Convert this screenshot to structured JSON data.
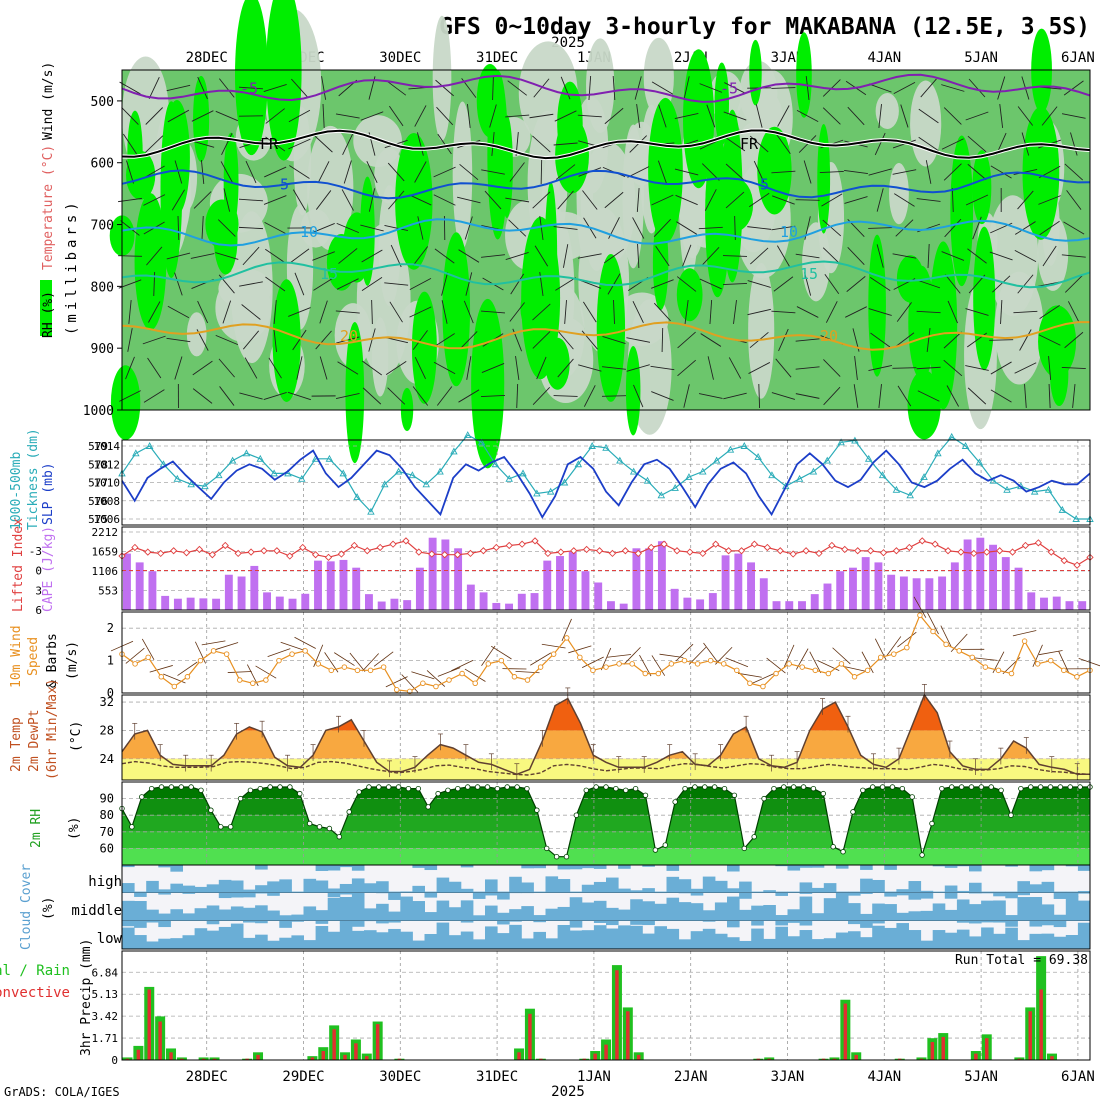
{
  "title": "GFS 0~10day 3-hourly for MAKABANA (12.5E, 3.5S)",
  "year_top": "2025",
  "year_bottom": "2025",
  "footer": "GrADS: COLA/IGES",
  "date_labels": [
    "28DEC",
    "29DEC",
    "30DEC",
    "31DEC",
    "1JAN",
    "2JAN",
    "3JAN",
    "4JAN",
    "5JAN",
    "6JAN"
  ],
  "panel_labels": {
    "upper": {
      "rh": "RH (%)",
      "temp": "Temperature (°C)",
      "wind": "Wind (m/s)",
      "units": "(millibars)"
    },
    "thick": {
      "a": "1000-500mb",
      "b": "Tickness (dm)",
      "slp": "SLP (mb)"
    },
    "li": {
      "li": "Lifted Index",
      "cape": "CAPE (J/kg)"
    },
    "wind10": {
      "a": "10m Wind",
      "b": "Speed",
      "c": "& Barbs",
      "units": "(m/s)"
    },
    "temp2m": {
      "a": "2m Temp",
      "b": "2m DewPt",
      "c": "(6hr Min/Max)",
      "units": "(°C)"
    },
    "rh2m": {
      "a": "2m RH",
      "units": "(%)"
    },
    "cloud": {
      "a": "Cloud Cover",
      "units": "(%)",
      "high": "high",
      "middle": "middle",
      "low": "low"
    },
    "precip": {
      "a": "Total / Rain",
      "b": "Convective",
      "c": "3hr Precip (mm)",
      "run_total": "Run Total = 69.38"
    }
  },
  "colors": {
    "rh_bright": "#00ee00",
    "rh_mid": "#6cc66c",
    "rh_light": "#c8d8c8",
    "slp": "#1c3ec8",
    "thickness": "#2aacb8",
    "li": "#e04040",
    "cape": "#c070f0",
    "wind10": "#e89020",
    "temp_hot": "#f06010",
    "temp_warm": "#f8a840",
    "temp_base": "#f8f880",
    "rh_dark": "#008000",
    "cloud": "#6aaed6",
    "precip_total": "#20c020",
    "precip_conv": "#e03030"
  },
  "chart_data": [
    {
      "type": "heatmap",
      "title": "Upper air RH, Temperature and Wind",
      "ylabel": "millibars",
      "y_ticks": [
        500,
        600,
        700,
        800,
        900,
        1000
      ],
      "ylim": [
        1000,
        450
      ],
      "isotherms": [
        {
          "label": "-5",
          "level": 480,
          "color": "#8020b0"
        },
        {
          "label": "FR",
          "level": 570,
          "color": "#000000"
        },
        {
          "label": "5",
          "level": 635,
          "color": "#1050d0"
        },
        {
          "label": "10",
          "level": 712,
          "color": "#20a0e0"
        },
        {
          "label": "15",
          "level": 780,
          "color": "#20c0a0"
        },
        {
          "label": "20",
          "level": 880,
          "color": "#e0a020"
        }
      ]
    },
    {
      "type": "line",
      "title": "1000-500mb Thickness (dm) and SLP (mb)",
      "y_ticks_thickness": [
        575,
        576,
        577,
        578,
        579
      ],
      "y_ticks_slp": [
        1006,
        1008,
        1010,
        1012,
        1014
      ],
      "series": [
        {
          "name": "SLP (mb)",
          "values": [
            1010.2,
            1008,
            1010.5,
            1011.5,
            1012.3,
            1010.8,
            1009.5,
            1008.2,
            1010,
            1011.3,
            1012,
            1011.5,
            1010.3,
            1011.2,
            1012.5,
            1013.5,
            1011,
            1009.5,
            1010.5,
            1012,
            1013.5,
            1013,
            1011.5,
            1009.5,
            1008,
            1006.5,
            1010.5,
            1012,
            1011.3,
            1012.2,
            1012.8,
            1011,
            1008.8,
            1006.2,
            1008.5,
            1012,
            1012.8,
            1011.5,
            1009,
            1007.5,
            1010,
            1012,
            1012.5,
            1011.5,
            1009.5,
            1007.3,
            1009.8,
            1011.5,
            1012.2,
            1011,
            1008.5,
            1006.5,
            1009.2,
            1012,
            1013.2,
            1012,
            1010.2,
            1009.5,
            1010.3,
            1012.2,
            1013.5,
            1012,
            1010,
            1009.5,
            1010.2,
            1011.5,
            1012.5,
            1011,
            1010.2,
            1010.8,
            1010.2,
            1009,
            1009.5,
            1010.2,
            1009.8,
            1009.8,
            1011
          ]
        },
        {
          "name": "Thickness (dm)",
          "values": [
            577.5,
            578.6,
            579.0,
            578.0,
            577.2,
            576.9,
            576.8,
            577.4,
            578.2,
            578.6,
            578.3,
            577.5,
            577.5,
            577.2,
            578.3,
            578.3,
            577.5,
            576.2,
            575.4,
            576.9,
            577.6,
            577.4,
            576.9,
            577.6,
            578.7,
            579.6,
            579.2,
            578.0,
            577.2,
            577.5,
            576.4,
            576.5,
            577.0,
            578.0,
            579.0,
            578.9,
            578.2,
            577.6,
            577.1,
            576.3,
            576.7,
            577.3,
            577.6,
            578.2,
            578.8,
            579.0,
            578.4,
            577.4,
            576.8,
            577.2,
            577.6,
            578.2,
            579.2,
            579.3,
            578.3,
            577.4,
            576.6,
            576.3,
            577.3,
            578.6,
            579.5,
            579.0,
            578.1,
            577.1,
            576.6,
            576.8,
            576.5,
            576.6,
            575.5,
            575.0,
            575.0
          ]
        }
      ]
    },
    {
      "type": "bar",
      "title": "Lifted Index and CAPE (J/kg)",
      "y_ticks_li": [
        -3,
        0,
        3,
        6
      ],
      "y_ticks_cape": [
        553,
        1106,
        1659,
        2212
      ],
      "series": [
        {
          "name": "CAPE (J/kg)",
          "values": [
            1600,
            1350,
            1100,
            400,
            320,
            350,
            330,
            320,
            1000,
            950,
            1250,
            500,
            380,
            320,
            460,
            1400,
            1380,
            1420,
            1200,
            450,
            240,
            320,
            280,
            1200,
            2050,
            2000,
            1750,
            720,
            500,
            200,
            180,
            460,
            480,
            1400,
            1530,
            1650,
            1100,
            780,
            250,
            180,
            1750,
            1750,
            1950,
            600,
            350,
            300,
            480,
            1550,
            1600,
            1350,
            900,
            250,
            250,
            250,
            450,
            750,
            1100,
            1200,
            1500,
            1350,
            1000,
            950,
            900,
            900,
            950,
            1350,
            2000,
            2050,
            1850,
            1500,
            1200,
            500,
            350,
            380,
            250,
            250
          ]
        },
        {
          "name": "Lifted Index",
          "values": [
            -2.2,
            -3.5,
            -2.8,
            -2.6,
            -3.0,
            -2.7,
            -3.2,
            -2.4,
            -3.8,
            -2.6,
            -2.8,
            -3.0,
            -3.0,
            -2.2,
            -3.5,
            -2.4,
            -2.0,
            -2.5,
            -3.8,
            -3.0,
            -3.5,
            -4.0,
            -4.5,
            -2.8,
            -2.5,
            -2.4,
            -2.4,
            -2.6,
            -3.0,
            -3.5,
            -3.8,
            -4.0,
            -4.5,
            -2.6,
            -2.8,
            -3.0,
            -3.2,
            -3.0,
            -2.6,
            -3.0,
            -2.6,
            -3.5,
            -4.0,
            -3.0,
            -2.8,
            -2.6,
            -4.0,
            -3.0,
            -3.0,
            -4.0,
            -3.5,
            -3.0,
            -2.5,
            -3.0,
            -2.6,
            -3.8,
            -3.2,
            -3.0,
            -3.0,
            -2.7,
            -3.0,
            -3.5,
            -4.5,
            -4.0,
            -3.0,
            -2.8,
            -2.6,
            -2.8,
            -3.0,
            -2.8,
            -3.8,
            -4.2,
            -2.8,
            -1.5,
            -0.8,
            -2.0
          ]
        }
      ]
    },
    {
      "type": "line",
      "title": "10m Wind Speed & Barbs",
      "ylabel": "m/s",
      "y_ticks": [
        0,
        1,
        2
      ],
      "ylim": [
        0,
        2.5
      ],
      "series": [
        {
          "name": "Speed",
          "values": [
            1.2,
            0.9,
            1.1,
            0.5,
            0.2,
            0.5,
            1.0,
            1.3,
            1.2,
            0.4,
            0.3,
            0.4,
            1.0,
            1.2,
            1.3,
            0.9,
            0.7,
            0.8,
            0.7,
            0.7,
            0.8,
            0.1,
            0.05,
            0.3,
            0.2,
            0.4,
            0.6,
            0.3,
            0.9,
            1.0,
            0.5,
            0.4,
            0.8,
            1.2,
            1.7,
            1.1,
            0.7,
            0.8,
            0.9,
            0.9,
            0.6,
            0.6,
            0.9,
            1.0,
            0.9,
            1.0,
            0.9,
            0.7,
            0.3,
            0.2,
            0.6,
            0.9,
            0.8,
            0.7,
            0.6,
            0.9,
            0.5,
            0.7,
            1.1,
            1.2,
            1.4,
            2.4,
            1.9,
            1.5,
            1.3,
            1.1,
            0.8,
            0.7,
            0.6,
            1.6,
            0.9,
            1.0,
            0.7,
            0.5,
            0.7
          ]
        }
      ]
    },
    {
      "type": "area",
      "title": "2m Temp, 2m DewPt (6hr Min/Max)",
      "ylabel": "°C",
      "y_ticks": [
        24,
        28,
        32
      ],
      "ylim": [
        21,
        33
      ],
      "series": [
        {
          "name": "2m Temp",
          "values": [
            25.0,
            27.5,
            28.0,
            24.5,
            23.2,
            23.0,
            23.0,
            23.0,
            24.5,
            27.5,
            28.5,
            27.8,
            24.2,
            23.0,
            22.8,
            24.5,
            28.0,
            28.5,
            29.5,
            26.5,
            23.5,
            22.2,
            22.2,
            22.8,
            24.5,
            26.0,
            25.5,
            24.5,
            23.5,
            23.2,
            22.5,
            21.8,
            22.5,
            26.5,
            31.5,
            32.5,
            29.0,
            24.5,
            23.5,
            22.8,
            22.8,
            22.8,
            23.5,
            24.5,
            25.0,
            23.2,
            23.0,
            24.5,
            27.5,
            28.5,
            24.0,
            23.0,
            22.8,
            23.5,
            28.0,
            31.0,
            32.0,
            28.5,
            24.5,
            23.2,
            22.8,
            24.0,
            28.5,
            33.0,
            30.5,
            25.0,
            23.0,
            22.5,
            22.5,
            24.0,
            26.5,
            25.5,
            23.2,
            22.8,
            22.5,
            21.8,
            21.8
          ]
        },
        {
          "name": "2m DewPt",
          "values": [
            23.3,
            23.6,
            23.4,
            23.0,
            22.8,
            22.8,
            22.8,
            22.9,
            23.5,
            23.6,
            23.5,
            23.3,
            23.0,
            22.6,
            22.8,
            23.5,
            23.6,
            23.4,
            23.0,
            22.6,
            22.3,
            22.0,
            22.2,
            22.5,
            23.0,
            23.1,
            22.8,
            22.6,
            22.2,
            22.0,
            21.8,
            21.7,
            22.0,
            23.0,
            23.2,
            23.0,
            22.6,
            22.3,
            22.5,
            22.7,
            22.7,
            22.6,
            23.0,
            23.3,
            23.2,
            22.9,
            22.7,
            23.0,
            23.3,
            23.2,
            22.8,
            22.6,
            22.6,
            22.9,
            23.2,
            23.0,
            22.8,
            22.7,
            22.6,
            22.6,
            22.5,
            22.8,
            23.2,
            23.0,
            22.6,
            22.4,
            22.4,
            22.6,
            23.0,
            22.9,
            22.5,
            22.2,
            22.1,
            21.9,
            21.8
          ]
        }
      ]
    },
    {
      "type": "area",
      "title": "2m RH",
      "ylabel": "%",
      "y_ticks": [
        60,
        70,
        80,
        90
      ],
      "ylim": [
        50,
        100
      ],
      "series": [
        {
          "name": "2m RH",
          "values": [
            84,
            73,
            91,
            96,
            97,
            97,
            97,
            97,
            95,
            83,
            73,
            73,
            90,
            95,
            96,
            97,
            97,
            97,
            93,
            75,
            73,
            72,
            67,
            82,
            94,
            97,
            97,
            97,
            97,
            96,
            96,
            85,
            93,
            95,
            96,
            97,
            97,
            97,
            96,
            97,
            97,
            96,
            83,
            60,
            55,
            55,
            80,
            95,
            97,
            97,
            96,
            95,
            96,
            92,
            59,
            62,
            88,
            96,
            97,
            97,
            97,
            96,
            92,
            60,
            67,
            90,
            96,
            97,
            97,
            97,
            96,
            93,
            61,
            58,
            82,
            95,
            97,
            97,
            97,
            96,
            91,
            56,
            75,
            96,
            97,
            97,
            97,
            97,
            97,
            95,
            80,
            96,
            97,
            97,
            97,
            97,
            97,
            97,
            97
          ]
        }
      ]
    },
    {
      "type": "heatmap",
      "title": "Cloud Cover (%)",
      "categories": [
        "high",
        "middle",
        "low"
      ]
    },
    {
      "type": "bar",
      "title": "3hr Precip (mm)",
      "ylabel": "mm",
      "y_ticks": [
        0,
        1.71,
        3.42,
        5.13,
        6.84
      ],
      "ylim": [
        0,
        8.5
      ],
      "run_total": 69.38,
      "series": [
        {
          "name": "Total / Rain",
          "values": [
            0.2,
            1.1,
            5.7,
            3.4,
            0.9,
            0.2,
            0,
            0.2,
            0.2,
            0,
            0,
            0.1,
            0.6,
            0,
            0,
            0,
            0,
            0.3,
            1.0,
            2.7,
            0.6,
            1.6,
            0.5,
            3.0,
            0,
            0.1,
            0,
            0,
            0,
            0,
            0,
            0,
            0,
            0,
            0,
            0,
            0.9,
            4.0,
            0.1,
            0,
            0,
            0,
            0.1,
            0.7,
            1.6,
            7.4,
            4.1,
            0.6,
            0,
            0,
            0,
            0,
            0,
            0,
            0,
            0,
            0,
            0,
            0.1,
            0.2,
            0,
            0,
            0,
            0,
            0.1,
            0.2,
            4.7,
            0.6,
            0,
            0,
            0,
            0.1,
            0,
            0.2,
            1.7,
            2.1,
            0,
            0,
            0.7,
            2.0,
            0,
            0,
            0.2,
            4.1,
            8.1,
            0.5,
            0,
            0,
            0
          ]
        },
        {
          "name": "Convective",
          "values": [
            0.1,
            0.8,
            5.5,
            3.0,
            0.6,
            0.1,
            0,
            0.1,
            0.1,
            0,
            0,
            0.1,
            0.4,
            0,
            0,
            0,
            0,
            0.2,
            0.7,
            2.4,
            0.4,
            1.3,
            0.3,
            2.8,
            0,
            0.1,
            0,
            0,
            0,
            0,
            0,
            0,
            0,
            0,
            0,
            0,
            0.6,
            3.6,
            0.1,
            0,
            0,
            0,
            0.1,
            0.5,
            1.2,
            7.0,
            3.8,
            0.4,
            0,
            0,
            0,
            0,
            0,
            0,
            0,
            0,
            0,
            0,
            0.1,
            0.1,
            0,
            0,
            0,
            0,
            0.1,
            0.1,
            4.4,
            0.4,
            0,
            0,
            0,
            0.1,
            0,
            0.1,
            1.4,
            1.8,
            0,
            0,
            0.5,
            1.7,
            0,
            0,
            0.1,
            3.8,
            5.5,
            0.3,
            0,
            0,
            0
          ]
        }
      ]
    }
  ]
}
